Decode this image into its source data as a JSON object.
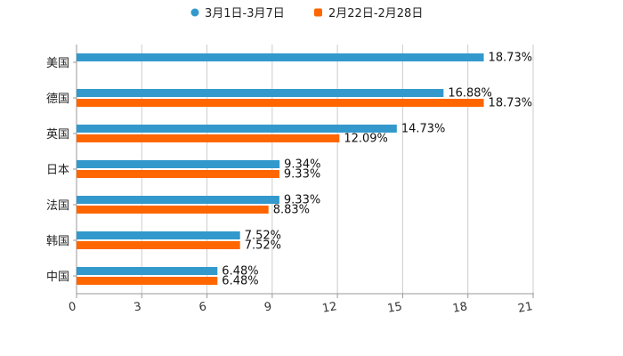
{
  "chart_data": {
    "type": "bar",
    "orientation": "horizontal",
    "categories": [
      "美国",
      "德国",
      "英国",
      "日本",
      "法国",
      "韩国",
      "中国"
    ],
    "series": [
      {
        "name": "3月1日-3月7日",
        "color": "#3399cc",
        "values": [
          18.73,
          16.88,
          14.73,
          9.34,
          9.33,
          7.52,
          6.48
        ],
        "labels": [
          "18.73%",
          "16.88%",
          "14.73%",
          "9.34%",
          "9.33%",
          "7.52%",
          "6.48%"
        ]
      },
      {
        "name": "2月22日-2月28日",
        "color": "#ff6600",
        "values": [
          null,
          18.73,
          12.09,
          9.33,
          8.83,
          7.52,
          6.48
        ],
        "labels": [
          null,
          "18.73%",
          "12.09%",
          "9.33%",
          "8.83%",
          "7.52%",
          "6.48%"
        ]
      }
    ],
    "xlim": [
      0,
      21
    ],
    "xticks": [
      0,
      3,
      6,
      9,
      12,
      15,
      18,
      21
    ],
    "xtick_labels": [
      "0",
      "3",
      "6",
      "9",
      "12",
      "15",
      "18",
      "21"
    ],
    "grid": "vertical",
    "legend_position": "top-center"
  }
}
